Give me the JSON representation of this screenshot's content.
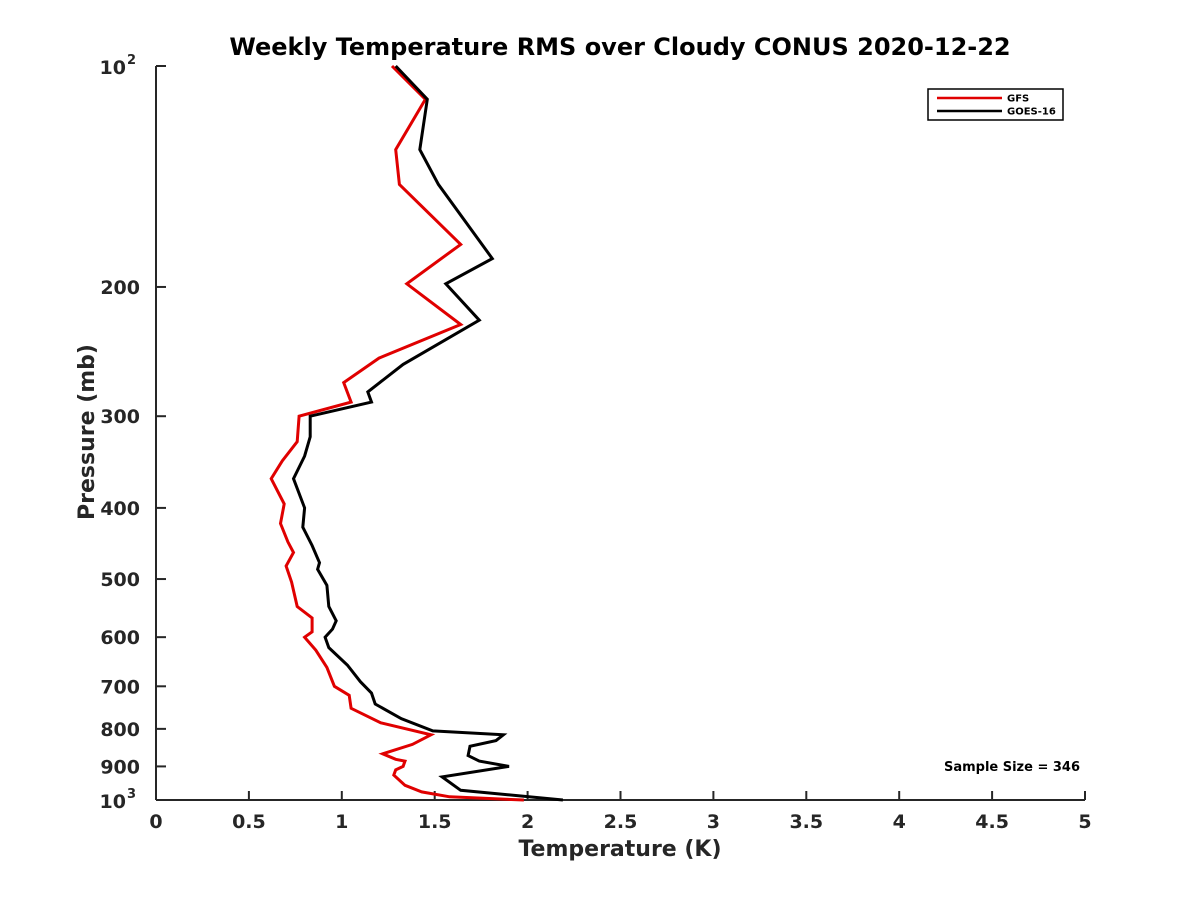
{
  "chart_data": {
    "type": "line",
    "title": "Weekly Temperature RMS over Cloudy CONUS 2020-12-22",
    "xlabel": "Temperature (K)",
    "ylabel": "Pressure (mb)",
    "xlim": [
      0,
      5
    ],
    "ylim": [
      100,
      1000
    ],
    "yscale": "log",
    "y_reversed": true,
    "xticks": [
      0,
      0.5,
      1,
      1.5,
      2,
      2.5,
      3,
      3.5,
      4,
      4.5,
      5
    ],
    "xtick_labels": [
      "0",
      "0.5",
      "1",
      "1.5",
      "2",
      "2.5",
      "3",
      "3.5",
      "4",
      "4.5",
      "5"
    ],
    "yticks": [
      {
        "value": 100,
        "base": "10",
        "exp": "2"
      },
      {
        "value": 200,
        "label": "200"
      },
      {
        "value": 300,
        "label": "300"
      },
      {
        "value": 400,
        "label": "400"
      },
      {
        "value": 500,
        "label": "500"
      },
      {
        "value": 600,
        "label": "600"
      },
      {
        "value": 700,
        "label": "700"
      },
      {
        "value": 800,
        "label": "800"
      },
      {
        "value": 900,
        "label": "900"
      },
      {
        "value": 1000,
        "base": "10",
        "exp": "3"
      }
    ],
    "grid": false,
    "legend_position": "top-right",
    "annotation": "Sample Size = 346",
    "series": [
      {
        "name": "GFS",
        "color": "#e00000",
        "x": [
          1.27,
          1.45,
          1.29,
          1.31,
          1.64,
          1.35,
          1.64,
          1.2,
          1.01,
          1.05,
          0.77,
          0.76,
          0.68,
          0.62,
          0.69,
          0.67,
          0.71,
          0.74,
          0.7,
          0.73,
          0.76,
          0.84,
          0.84,
          0.8,
          0.86,
          0.92,
          0.96,
          1.04,
          1.05,
          1.21,
          1.48,
          1.38,
          1.22,
          1.29,
          1.34,
          1.33,
          1.29,
          1.28,
          1.34,
          1.43,
          1.58,
          1.98
        ],
        "y": [
          100,
          111,
          130,
          145,
          175,
          198,
          225,
          250,
          270,
          287,
          300,
          325,
          345,
          365,
          395,
          420,
          445,
          460,
          480,
          505,
          545,
          565,
          590,
          600,
          625,
          660,
          700,
          720,
          750,
          785,
          815,
          840,
          865,
          880,
          885,
          900,
          910,
          925,
          955,
          975,
          990,
          1000
        ]
      },
      {
        "name": "GOES-16",
        "color": "#000000",
        "x": [
          1.29,
          1.46,
          1.42,
          1.52,
          1.81,
          1.56,
          1.74,
          1.33,
          1.14,
          1.16,
          0.83,
          0.83,
          0.8,
          0.74,
          0.8,
          0.79,
          0.84,
          0.88,
          0.87,
          0.92,
          0.93,
          0.97,
          0.95,
          0.91,
          0.93,
          1.03,
          1.1,
          1.16,
          1.18,
          1.32,
          1.49,
          1.87,
          1.83,
          1.69,
          1.68,
          1.74,
          1.9,
          1.54,
          1.64,
          2.19
        ],
        "y": [
          100,
          111,
          130,
          145,
          183,
          198,
          222,
          255,
          278,
          287,
          300,
          320,
          340,
          365,
          400,
          425,
          450,
          475,
          485,
          510,
          545,
          570,
          585,
          600,
          620,
          655,
          690,
          715,
          740,
          775,
          805,
          815,
          830,
          845,
          870,
          885,
          900,
          930,
          970,
          1000
        ]
      }
    ]
  }
}
